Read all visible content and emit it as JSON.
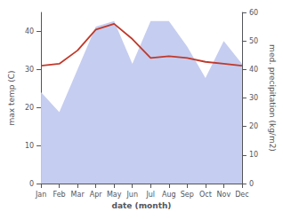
{
  "chart_data": {
    "type": "line",
    "xlabel": "date (month)",
    "ylabel": "max temp (C)",
    "y2label": "med. precipitation (kg/m2)",
    "categories": [
      "Jan",
      "Feb",
      "Mar",
      "Apr",
      "May",
      "Jun",
      "Jul",
      "Aug",
      "Sep",
      "Oct",
      "Nov",
      "Dec"
    ],
    "series": [
      {
        "type": "area",
        "axis": "y2",
        "color": "#c5cdf0",
        "values": [
          32,
          25,
          40,
          55,
          57,
          42,
          57,
          57,
          48,
          37,
          50,
          42
        ]
      },
      {
        "type": "line",
        "color": "#c0392b",
        "values": [
          31,
          31.5,
          35,
          40.5,
          42,
          38,
          33,
          33.5,
          33,
          32,
          31.5,
          31
        ]
      }
    ],
    "ylim": [
      0,
      45
    ],
    "yticks": [
      0,
      10,
      20,
      30,
      40
    ],
    "y2lim": [
      0,
      60
    ],
    "y2ticks": [
      0,
      10,
      20,
      30,
      40,
      50,
      60
    ],
    "grid": false
  }
}
